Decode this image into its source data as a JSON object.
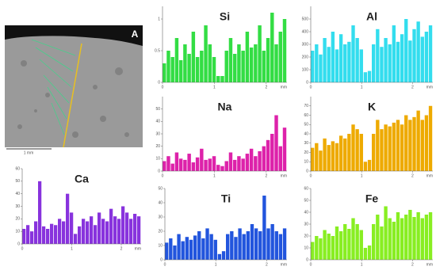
{
  "sem_image": {
    "label": "A",
    "scale_bar": "1 mm"
  },
  "chart_data": [
    {
      "type": "bar",
      "title": "Si",
      "color": "#33dd44",
      "xlabel": "mm",
      "x": [
        0,
        0.08,
        0.16,
        0.24,
        0.32,
        0.4,
        0.48,
        0.56,
        0.64,
        0.72,
        0.8,
        0.88,
        0.96,
        1.04,
        1.12,
        1.2,
        1.28,
        1.36,
        1.44,
        1.52,
        1.6,
        1.68,
        1.76,
        1.84,
        1.92,
        2,
        2.08,
        2.16,
        2.24,
        2.32
      ],
      "values": [
        0.3,
        0.5,
        0.4,
        0.7,
        0.35,
        0.6,
        0.45,
        0.8,
        0.4,
        0.5,
        0.9,
        0.6,
        0.4,
        0.1,
        0.1,
        0.5,
        0.7,
        0.45,
        0.6,
        0.5,
        0.8,
        0.55,
        0.6,
        0.9,
        0.5,
        0.7,
        1.1,
        0.6,
        0.8,
        1.0
      ],
      "xlim": [
        0,
        2.4
      ],
      "xticks": [
        0,
        1,
        2
      ],
      "ylim": [
        0,
        1.2
      ],
      "yticks": [
        0,
        0.5,
        1
      ]
    },
    {
      "type": "bar",
      "title": "Al",
      "color": "#33ddee",
      "xlabel": "mm",
      "x": [
        0,
        0.08,
        0.16,
        0.24,
        0.32,
        0.4,
        0.48,
        0.56,
        0.64,
        0.72,
        0.8,
        0.88,
        0.96,
        1.04,
        1.12,
        1.2,
        1.28,
        1.36,
        1.44,
        1.52,
        1.6,
        1.68,
        1.76,
        1.84,
        1.92,
        2,
        2.08,
        2.16,
        2.24,
        2.32
      ],
      "values": [
        250,
        300,
        220,
        350,
        280,
        400,
        260,
        380,
        300,
        320,
        450,
        350,
        260,
        80,
        90,
        300,
        420,
        280,
        350,
        300,
        450,
        320,
        380,
        500,
        330,
        420,
        480,
        360,
        400,
        450
      ],
      "xlim": [
        0,
        2.4
      ],
      "xticks": [
        0,
        1,
        2
      ],
      "ylim": [
        0,
        600
      ],
      "yticks": [
        0,
        100,
        200,
        300,
        400,
        500
      ]
    },
    {
      "type": "bar",
      "title": "Na",
      "color": "#dd22aa",
      "xlabel": "mm",
      "x": [
        0,
        0.08,
        0.16,
        0.24,
        0.32,
        0.4,
        0.48,
        0.56,
        0.64,
        0.72,
        0.8,
        0.88,
        0.96,
        1.04,
        1.12,
        1.2,
        1.28,
        1.36,
        1.44,
        1.52,
        1.6,
        1.68,
        1.76,
        1.84,
        1.92,
        2,
        2.08,
        2.16,
        2.24,
        2.32
      ],
      "values": [
        8,
        12,
        6,
        15,
        10,
        9,
        14,
        7,
        11,
        18,
        9,
        10,
        12,
        5,
        4,
        8,
        15,
        9,
        12,
        10,
        14,
        18,
        12,
        16,
        20,
        25,
        30,
        45,
        20,
        35
      ],
      "xlim": [
        0,
        2.4
      ],
      "xticks": [
        0,
        1,
        2
      ],
      "ylim": [
        0,
        60
      ],
      "yticks": [
        0,
        10,
        20,
        30,
        40,
        50
      ]
    },
    {
      "type": "bar",
      "title": "K",
      "color": "#eeaa00",
      "xlabel": "mm",
      "x": [
        0,
        0.08,
        0.16,
        0.24,
        0.32,
        0.4,
        0.48,
        0.56,
        0.64,
        0.72,
        0.8,
        0.88,
        0.96,
        1.04,
        1.12,
        1.2,
        1.28,
        1.36,
        1.44,
        1.52,
        1.6,
        1.68,
        1.76,
        1.84,
        1.92,
        2,
        2.08,
        2.16,
        2.24,
        2.32
      ],
      "values": [
        25,
        30,
        22,
        35,
        28,
        32,
        30,
        38,
        35,
        40,
        50,
        45,
        40,
        10,
        12,
        40,
        55,
        45,
        50,
        48,
        52,
        55,
        50,
        60,
        55,
        58,
        65,
        55,
        60,
        70
      ],
      "xlim": [
        0,
        2.4
      ],
      "xticks": [
        0,
        1,
        2
      ],
      "ylim": [
        0,
        80
      ],
      "yticks": [
        0,
        10,
        20,
        30,
        40,
        50,
        60,
        70
      ]
    },
    {
      "type": "bar",
      "title": "Ca",
      "color": "#8833dd",
      "xlabel": "mm",
      "x": [
        0,
        0.08,
        0.16,
        0.24,
        0.32,
        0.4,
        0.48,
        0.56,
        0.64,
        0.72,
        0.8,
        0.88,
        0.96,
        1.04,
        1.12,
        1.2,
        1.28,
        1.36,
        1.44,
        1.52,
        1.6,
        1.68,
        1.76,
        1.84,
        1.92,
        2,
        2.08,
        2.16,
        2.24,
        2.32
      ],
      "values": [
        12,
        15,
        10,
        18,
        50,
        14,
        12,
        16,
        15,
        20,
        18,
        40,
        25,
        8,
        14,
        20,
        18,
        22,
        15,
        25,
        20,
        18,
        28,
        22,
        20,
        30,
        25,
        20,
        24,
        22
      ],
      "xlim": [
        0,
        2.4
      ],
      "xticks": [
        0,
        1,
        2
      ],
      "ylim": [
        0,
        60
      ],
      "yticks": [
        0,
        10,
        20,
        30,
        40,
        50,
        60
      ]
    },
    {
      "type": "bar",
      "title": "Ti",
      "color": "#2255dd",
      "xlabel": "mm",
      "x": [
        0,
        0.08,
        0.16,
        0.24,
        0.32,
        0.4,
        0.48,
        0.56,
        0.64,
        0.72,
        0.8,
        0.88,
        0.96,
        1.04,
        1.12,
        1.2,
        1.28,
        1.36,
        1.44,
        1.52,
        1.6,
        1.68,
        1.76,
        1.84,
        1.92,
        2,
        2.08,
        2.16,
        2.24,
        2.32
      ],
      "values": [
        12,
        15,
        10,
        18,
        13,
        16,
        14,
        17,
        20,
        15,
        22,
        18,
        14,
        4,
        6,
        18,
        20,
        16,
        22,
        18,
        20,
        25,
        22,
        20,
        45,
        22,
        25,
        20,
        18,
        22
      ],
      "xlim": [
        0,
        2.4
      ],
      "xticks": [
        0,
        1,
        2
      ],
      "ylim": [
        0,
        50
      ],
      "yticks": [
        0,
        10,
        20,
        30,
        40,
        50
      ]
    },
    {
      "type": "bar",
      "title": "Fe",
      "color": "#88ee22",
      "xlabel": "mm",
      "x": [
        0,
        0.08,
        0.16,
        0.24,
        0.32,
        0.4,
        0.48,
        0.56,
        0.64,
        0.72,
        0.8,
        0.88,
        0.96,
        1.04,
        1.12,
        1.2,
        1.28,
        1.36,
        1.44,
        1.52,
        1.6,
        1.68,
        1.76,
        1.84,
        1.92,
        2,
        2.08,
        2.16,
        2.24,
        2.32
      ],
      "values": [
        15,
        20,
        18,
        25,
        22,
        20,
        28,
        24,
        30,
        26,
        35,
        30,
        25,
        10,
        12,
        30,
        38,
        28,
        45,
        35,
        32,
        40,
        35,
        38,
        42,
        36,
        40,
        35,
        38,
        40
      ],
      "xlim": [
        0,
        2.4
      ],
      "xticks": [
        0,
        1,
        2
      ],
      "ylim": [
        0,
        60
      ],
      "yticks": [
        0,
        10,
        20,
        30,
        40,
        50,
        60
      ]
    }
  ]
}
